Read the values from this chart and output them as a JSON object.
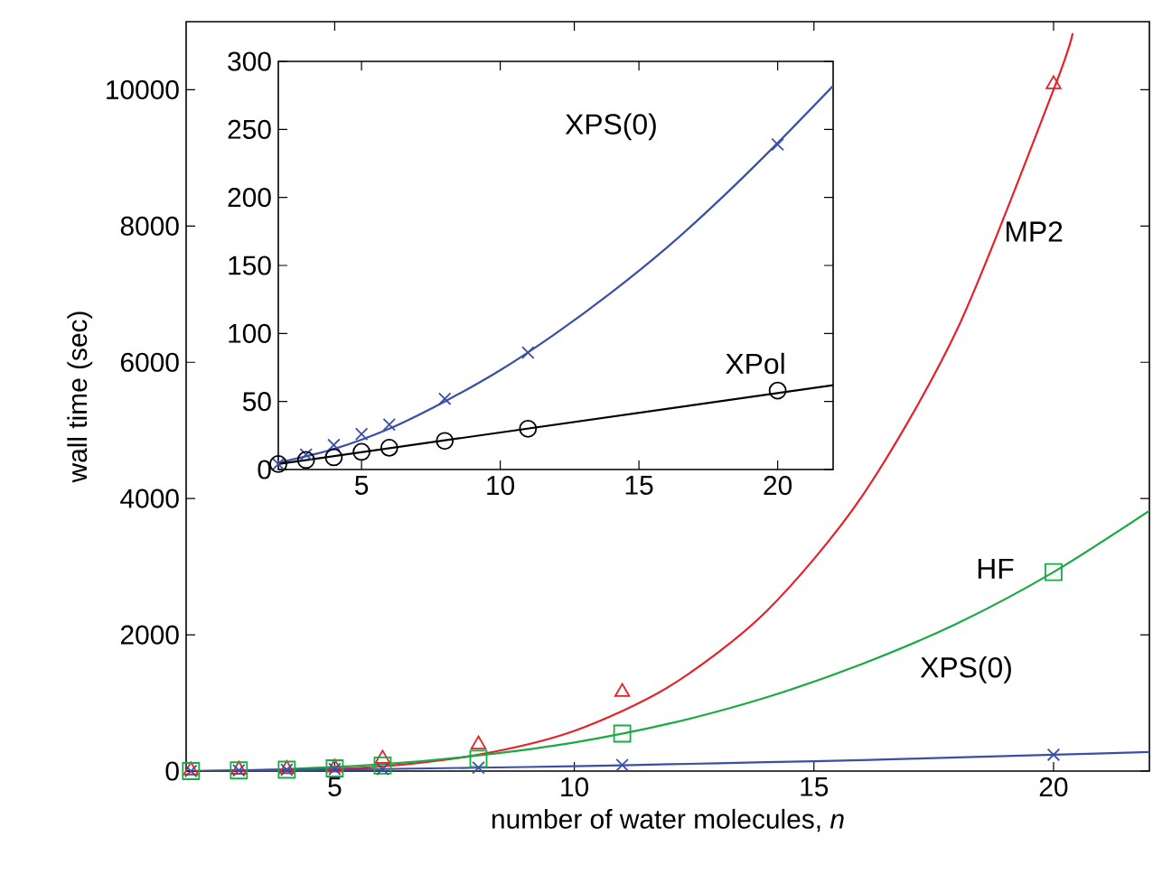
{
  "chart_data": [
    {
      "type": "scatter",
      "xlabel": "number of water molecules, *n*",
      "ylabel": "wall time (sec)",
      "xlim": [
        1.9,
        22
      ],
      "ylim": [
        0,
        11000
      ],
      "xticks": [
        5,
        10,
        15,
        20
      ],
      "yticks": [
        0,
        2000,
        4000,
        6000,
        8000,
        10000
      ],
      "grid": false,
      "series": [
        {
          "type": "line",
          "color": "#e8202a",
          "marker": "none",
          "x": [
            2,
            4,
            6,
            8,
            10,
            12,
            14,
            16,
            18,
            20,
            20.4
          ],
          "values": [
            0,
            10,
            70,
            240,
            590,
            1250,
            2340,
            4030,
            6500,
            10000,
            10830
          ]
        },
        {
          "type": "line",
          "color": "#1aaa44",
          "marker": "none",
          "x": [
            2,
            4,
            6,
            8,
            10,
            12,
            14,
            16,
            18,
            20,
            22
          ],
          "values": [
            0,
            30,
            100,
            230,
            420,
            700,
            1080,
            1570,
            2170,
            2920,
            3820
          ]
        },
        {
          "type": "line",
          "color": "#3a4fa8",
          "marker": "none",
          "x": [
            2,
            4,
            6,
            8,
            10,
            12,
            14,
            16,
            18,
            20,
            22
          ],
          "values": [
            0,
            20,
            30,
            50,
            70,
            100,
            130,
            160,
            200,
            240,
            280
          ]
        },
        {
          "color": "#e8202a",
          "marker": "triangle",
          "x": [
            2,
            3,
            4,
            5,
            6,
            8,
            11,
            20
          ],
          "values": [
            10,
            20,
            30,
            50,
            180,
            390,
            1160,
            10080
          ]
        },
        {
          "color": "#1aaa44",
          "marker": "square",
          "x": [
            2,
            3,
            4,
            5,
            6,
            8,
            11,
            20
          ],
          "values": [
            0,
            10,
            20,
            40,
            80,
            180,
            550,
            2920
          ]
        },
        {
          "color": "#3a4fa8",
          "marker": "cross",
          "x": [
            2,
            3,
            4,
            5,
            6,
            8,
            11,
            20
          ],
          "values": [
            0,
            10,
            20,
            30,
            30,
            50,
            90,
            240
          ]
        }
      ],
      "annotations": [
        "MP2",
        "HF",
        "XPS(0)"
      ]
    },
    {
      "type": "scatter",
      "xlim": [
        2,
        22
      ],
      "ylim": [
        0,
        300
      ],
      "xticks": [
        5,
        10,
        15,
        20
      ],
      "yticks": [
        0,
        50,
        100,
        150,
        200,
        250,
        300
      ],
      "grid": false,
      "series": [
        {
          "type": "line",
          "color": "#3a4fa8",
          "marker": "none",
          "x": [
            2,
            4,
            6,
            8,
            10,
            12,
            14,
            16,
            18,
            20,
            22
          ],
          "values": [
            5,
            15,
            30,
            50,
            73,
            100,
            130,
            163,
            200,
            240,
            282
          ]
        },
        {
          "type": "line",
          "color": "#000000",
          "marker": "none",
          "x": [
            2,
            22
          ],
          "values": [
            4,
            62
          ]
        },
        {
          "color": "#3a4fa8",
          "marker": "cross",
          "x": [
            2,
            3,
            4,
            5,
            6,
            8,
            11,
            20
          ],
          "values": [
            4,
            11,
            18,
            26,
            33,
            52,
            86,
            239
          ]
        },
        {
          "color": "#000000",
          "marker": "circle",
          "x": [
            2,
            3,
            4,
            5,
            6,
            8,
            11,
            20
          ],
          "values": [
            4,
            7,
            9,
            13,
            16,
            21,
            30,
            58
          ]
        }
      ],
      "annotations": [
        "XPS(0)",
        "XPol"
      ]
    }
  ]
}
